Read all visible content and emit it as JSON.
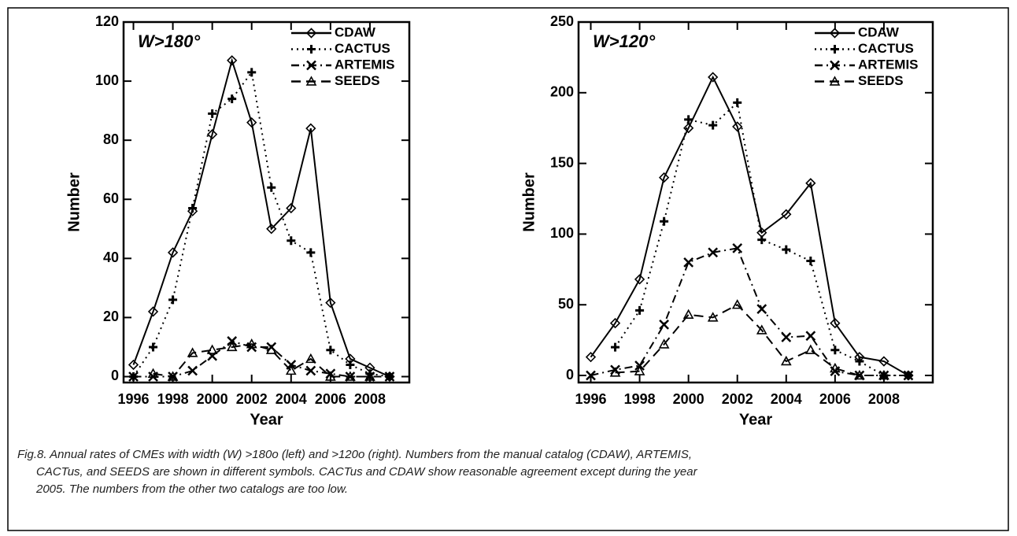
{
  "chart_data": [
    {
      "type": "line",
      "annotation": "W>180°",
      "xlabel": "Year",
      "ylabel": "Number",
      "x": [
        1996,
        1997,
        1998,
        1999,
        2000,
        2001,
        2002,
        2003,
        2004,
        2005,
        2006,
        2007,
        2008,
        2009
      ],
      "xlim": [
        1995.5,
        2010
      ],
      "xticks": [
        1996,
        1998,
        2000,
        2002,
        2004,
        2006,
        2008
      ],
      "ylim": [
        -2,
        120
      ],
      "yticks": [
        0,
        20,
        40,
        60,
        80,
        100,
        120
      ],
      "legend": "upper right",
      "series": [
        {
          "name": "CDAW",
          "color": "#000000",
          "dash": "solid",
          "marker": "diamond",
          "values": [
            4,
            22,
            42,
            56,
            82,
            107,
            86,
            50,
            57,
            84,
            25,
            6,
            3,
            0
          ]
        },
        {
          "name": "CACTUS",
          "color": "#000000",
          "dash": "dotted",
          "marker": "plus",
          "values": [
            0,
            10,
            26,
            57,
            89,
            94,
            103,
            64,
            46,
            42,
            9,
            4,
            1,
            0
          ]
        },
        {
          "name": "ARTEMIS",
          "color": "#000000",
          "dash": "dashdot",
          "marker": "x",
          "values": [
            0,
            0,
            0,
            2,
            7,
            12,
            10,
            10,
            4,
            2,
            1,
            0,
            0,
            0
          ]
        },
        {
          "name": "SEEDS",
          "color": "#000000",
          "dash": "dashed",
          "marker": "triangle",
          "values": [
            null,
            1,
            0,
            8,
            9,
            10,
            11,
            9,
            2,
            6,
            0,
            0,
            0,
            null
          ]
        }
      ]
    },
    {
      "type": "line",
      "annotation": "W>120°",
      "xlabel": "Year",
      "ylabel": "Number",
      "x": [
        1996,
        1997,
        1998,
        1999,
        2000,
        2001,
        2002,
        2003,
        2004,
        2005,
        2006,
        2007,
        2008,
        2009
      ],
      "xlim": [
        1995.5,
        2010
      ],
      "xticks": [
        1996,
        1998,
        2000,
        2002,
        2004,
        2006,
        2008
      ],
      "ylim": [
        -5,
        250
      ],
      "yticks": [
        0,
        50,
        100,
        150,
        200,
        250
      ],
      "legend": "upper right",
      "series": [
        {
          "name": "CDAW",
          "color": "#000000",
          "dash": "solid",
          "marker": "diamond",
          "values": [
            13,
            37,
            68,
            140,
            175,
            211,
            176,
            101,
            114,
            136,
            37,
            13,
            10,
            0
          ]
        },
        {
          "name": "CACTUS",
          "color": "#000000",
          "dash": "dotted",
          "marker": "plus",
          "values": [
            null,
            20,
            46,
            109,
            181,
            177,
            193,
            96,
            89,
            81,
            18,
            10,
            0,
            0
          ]
        },
        {
          "name": "ARTEMIS",
          "color": "#000000",
          "dash": "dashdot",
          "marker": "x",
          "values": [
            0,
            4,
            7,
            36,
            80,
            87,
            90,
            47,
            27,
            28,
            3,
            0,
            0,
            0
          ]
        },
        {
          "name": "SEEDS",
          "color": "#000000",
          "dash": "dashed",
          "marker": "triangle",
          "values": [
            null,
            2,
            3,
            22,
            43,
            41,
            50,
            32,
            10,
            18,
            5,
            0,
            0,
            null
          ]
        }
      ]
    }
  ],
  "caption": [
    "Fig.8. Annual rates of CMEs with width (W) >180o (left) and >120o (right). Numbers from the manual catalog (CDAW), ARTEMIS,",
    "CACTus, and SEEDS are shown in different symbols. CACTus and CDAW show reasonable agreement except during the year",
    "2005. The numbers from the other two catalogs are too low."
  ]
}
